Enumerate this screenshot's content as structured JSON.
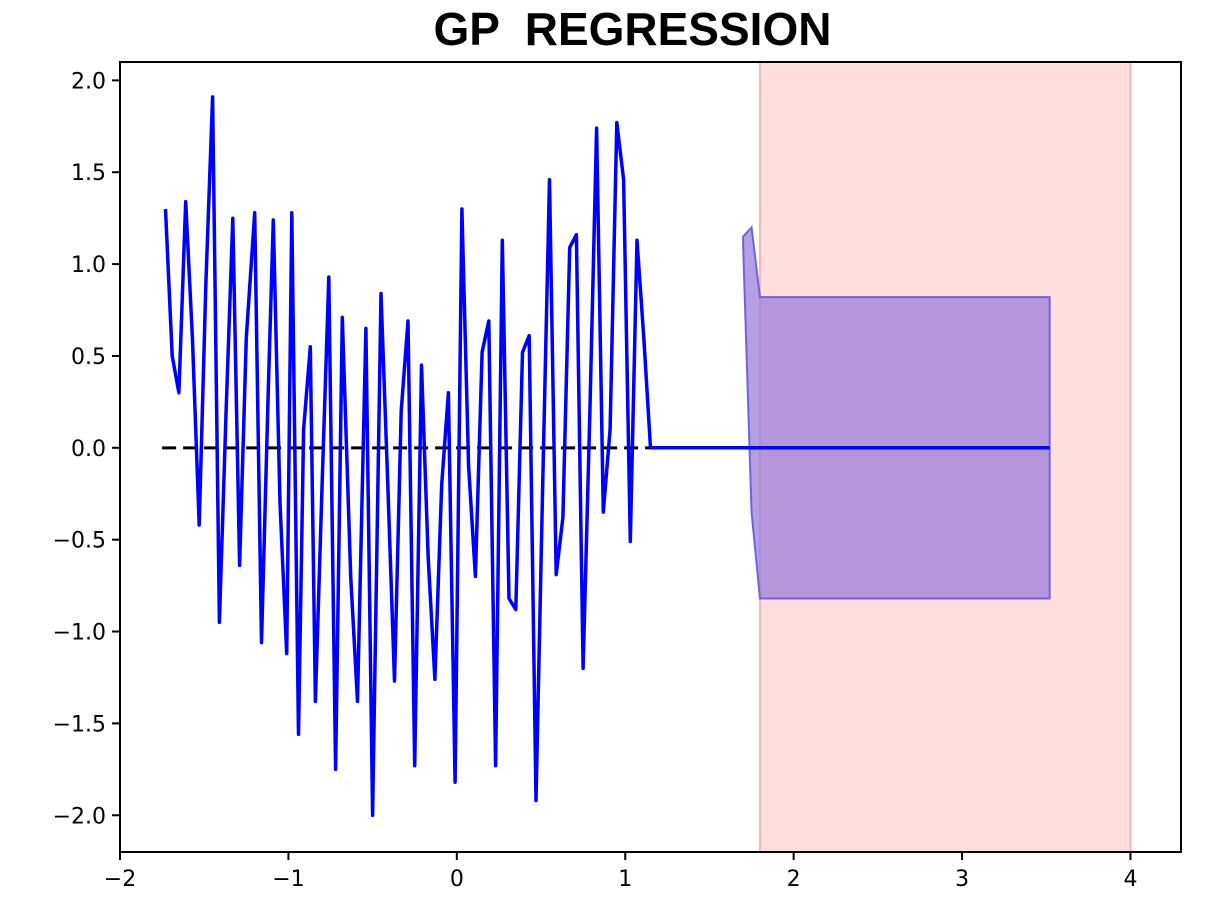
{
  "chart_data": {
    "type": "line",
    "title": "GP  REGRESSION",
    "xlabel": "",
    "ylabel": "",
    "xlim": [
      -2,
      4.3
    ],
    "ylim": [
      -2.2,
      2.1
    ],
    "xticks": [
      -2,
      -1,
      0,
      1,
      2,
      3,
      4
    ],
    "yticks": [
      -2.0,
      -1.5,
      -1.0,
      -0.5,
      0.0,
      0.5,
      1.0,
      1.5,
      2.0
    ],
    "xtick_labels": [
      "−2",
      "−1",
      "0",
      "1",
      "2",
      "3",
      "4"
    ],
    "ytick_labels": [
      "−2.0",
      "−1.5",
      "−1.0",
      "−0.5",
      "0.0",
      "0.5",
      "1.0",
      "1.5",
      "2.0"
    ],
    "shaded_region": {
      "x_start": 1.8,
      "x_end": 4.0,
      "color": "#ffdede",
      "edge": "#f2b7b7"
    },
    "reference_line": {
      "x": [
        -1.75,
        1.8
      ],
      "y": [
        0.0,
        0.0
      ],
      "color": "#000000",
      "style": "dashed"
    },
    "confidence_band": {
      "color": "#9a7fd8",
      "x": [
        1.7,
        1.75,
        1.8,
        3.52
      ],
      "upper": [
        1.15,
        1.2,
        0.82,
        0.82
      ],
      "lower": [
        1.1,
        -0.35,
        -0.82,
        -0.82
      ]
    },
    "series": [
      {
        "color": "#0000ff",
        "x": [
          -1.73,
          -1.69,
          -1.65,
          -1.61,
          -1.57,
          -1.53,
          -1.49,
          -1.45,
          -1.41,
          -1.37,
          -1.33,
          -1.29,
          -1.25,
          -1.2,
          -1.16,
          -1.12,
          -1.09,
          -1.05,
          -1.01,
          -0.98,
          -0.94,
          -0.91,
          -0.87,
          -0.84,
          -0.8,
          -0.76,
          -0.72,
          -0.68,
          -0.63,
          -0.59,
          -0.54,
          -0.5,
          -0.45,
          -0.41,
          -0.37,
          -0.33,
          -0.29,
          -0.25,
          -0.21,
          -0.17,
          -0.13,
          -0.09,
          -0.05,
          -0.01,
          0.03,
          0.07,
          0.11,
          0.15,
          0.19,
          0.23,
          0.27,
          0.31,
          0.35,
          0.39,
          0.43,
          0.47,
          0.51,
          0.55,
          0.59,
          0.63,
          0.67,
          0.71,
          0.75,
          0.79,
          0.83,
          0.87,
          0.91,
          0.95,
          0.99,
          1.03,
          1.07,
          1.11,
          1.15,
          1.19,
          1.23,
          1.27,
          1.31,
          1.35,
          1.39,
          1.43,
          1.47,
          1.51,
          1.55,
          1.59,
          1.63,
          1.67,
          1.7,
          1.75,
          1.8,
          2.2,
          2.6,
          3.0,
          3.52
        ],
        "y": [
          1.3,
          0.5,
          0.3,
          1.34,
          0.6,
          -0.42,
          0.9,
          1.91,
          -0.95,
          0.2,
          1.25,
          -0.64,
          0.6,
          1.28,
          -1.06,
          0.3,
          1.24,
          -0.3,
          -1.12,
          1.28,
          -1.56,
          0.1,
          0.55,
          -1.38,
          -0.2,
          0.93,
          -1.75,
          0.71,
          -0.7,
          -1.38,
          0.65,
          -2.0,
          0.84,
          -0.2,
          -1.27,
          0.2,
          0.69,
          -1.73,
          0.45,
          -0.6,
          -1.26,
          -0.2,
          0.3,
          -1.82,
          1.3,
          -0.1,
          -0.7,
          0.52,
          0.69,
          -1.73,
          1.13,
          -0.82,
          -0.88,
          0.52,
          0.61,
          -1.92,
          -0.2,
          1.46,
          -0.69,
          -0.38,
          1.09,
          1.16,
          -1.2,
          0.2,
          1.74,
          -0.35,
          0.1,
          1.77,
          1.46,
          -0.51,
          1.13,
          0.6,
          0.0,
          0.0,
          0.0,
          0.0,
          0.0,
          0.0,
          0.0,
          0.0,
          0.0,
          0.0,
          0.0,
          0.0,
          0.0,
          0.0,
          0.0,
          0.0,
          0.0,
          0.0,
          0.0,
          0.0,
          0.0
        ]
      }
    ]
  }
}
